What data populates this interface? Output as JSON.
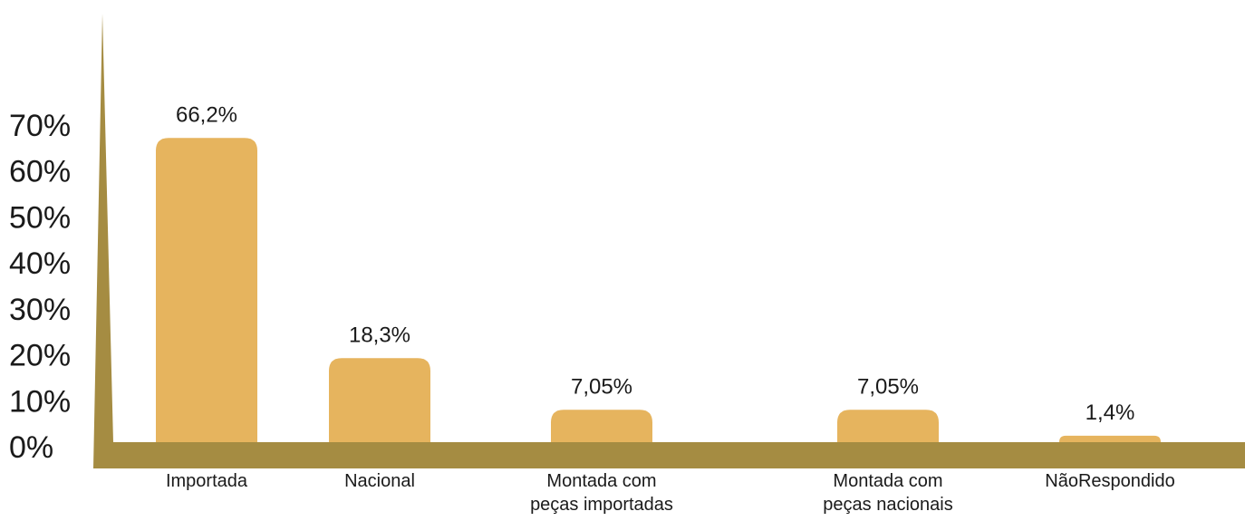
{
  "chart_data": {
    "type": "bar",
    "categories": [
      "Importada",
      "Nacional",
      "Montada com peças importadas",
      "Montada com peças nacionais",
      "NãoRespondido"
    ],
    "values": [
      66.2,
      18.3,
      7.05,
      7.05,
      1.4
    ],
    "value_labels": [
      "66,2%",
      "18,3%",
      "7,05%",
      "7,05%",
      "1,4%"
    ],
    "color": "#e6b45e",
    "ylim": [
      0,
      70
    ],
    "yticks": [
      {
        "value": 0,
        "label": "0%"
      },
      {
        "value": 10,
        "label": "10%"
      },
      {
        "value": 20,
        "label": "20%"
      },
      {
        "value": 30,
        "label": "30%"
      },
      {
        "value": 40,
        "label": "40%"
      },
      {
        "value": 50,
        "label": "50%"
      },
      {
        "value": 60,
        "label": "60%"
      },
      {
        "value": 70,
        "label": "70%"
      }
    ],
    "grid": false
  }
}
